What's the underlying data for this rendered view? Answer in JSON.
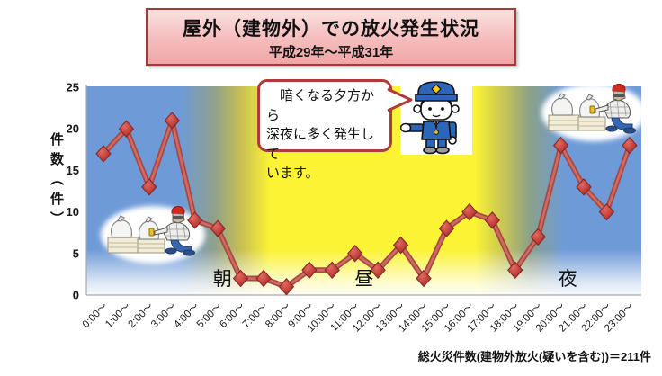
{
  "title": {
    "text": "屋外（建物外）での放火発生状況",
    "subtitle": "平成29年～平成31年"
  },
  "callout": {
    "lines": [
      "　暗くなる夕方から",
      "深夜に多く発生して",
      "います。"
    ]
  },
  "footnote": {
    "text": "総火災件数(建物外放火(疑いを含む))＝211件"
  },
  "chart_data": {
    "type": "line",
    "title": "屋外（建物外）での放火発生状況 平成29年～平成31年",
    "categories": [
      "0:00～",
      "1:00～",
      "2:00～",
      "3:00～",
      "4:00～",
      "5:00～",
      "6:00～",
      "7:00～",
      "8:00～",
      "9:00～",
      "10:00～",
      "11:00～",
      "12:00～",
      "13:00～",
      "14:00～",
      "15:00～",
      "16:00～",
      "17:00～",
      "18:00～",
      "19:00～",
      "20:00～",
      "21:00～",
      "22:00～",
      "23:00～"
    ],
    "values": [
      17,
      20,
      13,
      21,
      9,
      8,
      2,
      2,
      1,
      3,
      3,
      5,
      3,
      6,
      2,
      8,
      10,
      9,
      3,
      7,
      18,
      13,
      10,
      18
    ],
    "total": 211,
    "xlabel": "",
    "ylabel": "件数（件）",
    "ylim": [
      0,
      25
    ],
    "yticks": [
      0,
      5,
      10,
      15,
      20,
      25
    ],
    "grid": false,
    "legend": "none",
    "annotations": [
      {
        "label": "朝",
        "hour": 5.2
      },
      {
        "label": "昼",
        "hour": 11.4
      },
      {
        "label": "夜",
        "hour": 20.3
      }
    ],
    "line_color": "#C0504D",
    "marker": "diamond",
    "background_night_color": "#6E9BD8",
    "background_day_color": "#FBF334"
  },
  "style_colors": {
    "title_border": "#A43A38",
    "title_background": "#F3B7B7",
    "bubble_border": "#AF3B39"
  },
  "illustrations": {
    "police_officer": "police-officer-pointing",
    "arsonist_left": "arsonist-lighting-garbage-bags",
    "arsonist_right": "arsonist-lighting-garbage-bags"
  }
}
